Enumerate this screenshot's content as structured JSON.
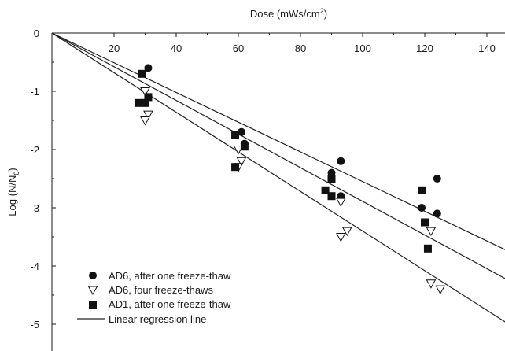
{
  "chart_data": {
    "type": "scatter",
    "xlabel_main": "Dose (mWs/cm",
    "xlabel_sup": "2",
    "xlabel_end": ")",
    "ylabel_main": "Log (N/N",
    "ylabel_sub": "0",
    "ylabel_end": ")",
    "x_axis_position": "top",
    "xlim": [
      0,
      145
    ],
    "ylim": [
      -5.3,
      0
    ],
    "x_ticks": [
      20,
      40,
      60,
      80,
      100,
      120,
      140
    ],
    "x_tick_labels": [
      "20",
      "40",
      "60",
      "80",
      "100",
      "120",
      "140"
    ],
    "y_ticks": [
      0,
      -1,
      -2,
      -3,
      -4,
      -5
    ],
    "y_tick_labels": [
      "0",
      "-1",
      "-2",
      "-3",
      "-4",
      "-5"
    ],
    "grid": false,
    "legend_position": "bottom-left",
    "series": [
      {
        "name": "AD6, after one freeze-thaw",
        "marker": "filled-circle",
        "points": [
          [
            31,
            -0.6
          ],
          [
            30,
            -1.2
          ],
          [
            61,
            -1.7
          ],
          [
            62,
            -1.9
          ],
          [
            90,
            -2.4
          ],
          [
            93,
            -2.2
          ],
          [
            93,
            -2.8
          ],
          [
            119,
            -3.0
          ],
          [
            124,
            -2.5
          ],
          [
            124,
            -3.1
          ]
        ]
      },
      {
        "name": "AD6, four freeze-thaws",
        "marker": "open-triangle-down",
        "points": [
          [
            30,
            -1.0
          ],
          [
            31,
            -1.4
          ],
          [
            30,
            -1.5
          ],
          [
            60,
            -2.0
          ],
          [
            61,
            -2.2
          ],
          [
            60,
            -2.3
          ],
          [
            93,
            -2.9
          ],
          [
            95,
            -3.4
          ],
          [
            93,
            -3.5
          ],
          [
            122,
            -3.4
          ],
          [
            122,
            -4.3
          ],
          [
            125,
            -4.4
          ]
        ]
      },
      {
        "name": "AD1, after one freeze-thaw",
        "marker": "filled-square",
        "points": [
          [
            29,
            -0.7
          ],
          [
            28,
            -1.2
          ],
          [
            30,
            -1.2
          ],
          [
            31,
            -1.1
          ],
          [
            59,
            -1.75
          ],
          [
            59,
            -2.3
          ],
          [
            62,
            -1.95
          ],
          [
            88,
            -2.7
          ],
          [
            90,
            -2.5
          ],
          [
            90,
            -2.8
          ],
          [
            119,
            -2.7
          ],
          [
            120,
            -3.25
          ],
          [
            121,
            -3.7
          ]
        ]
      }
    ],
    "regression_legend_label": "Linear regression line",
    "regression_lines": [
      {
        "slope": -0.0255,
        "intercept": 0
      },
      {
        "slope": -0.0289,
        "intercept": 0
      },
      {
        "slope": -0.034,
        "intercept": 0
      }
    ]
  },
  "colors": {
    "axis": "#1a1a1a",
    "marker": "#111111",
    "line": "#222222"
  }
}
